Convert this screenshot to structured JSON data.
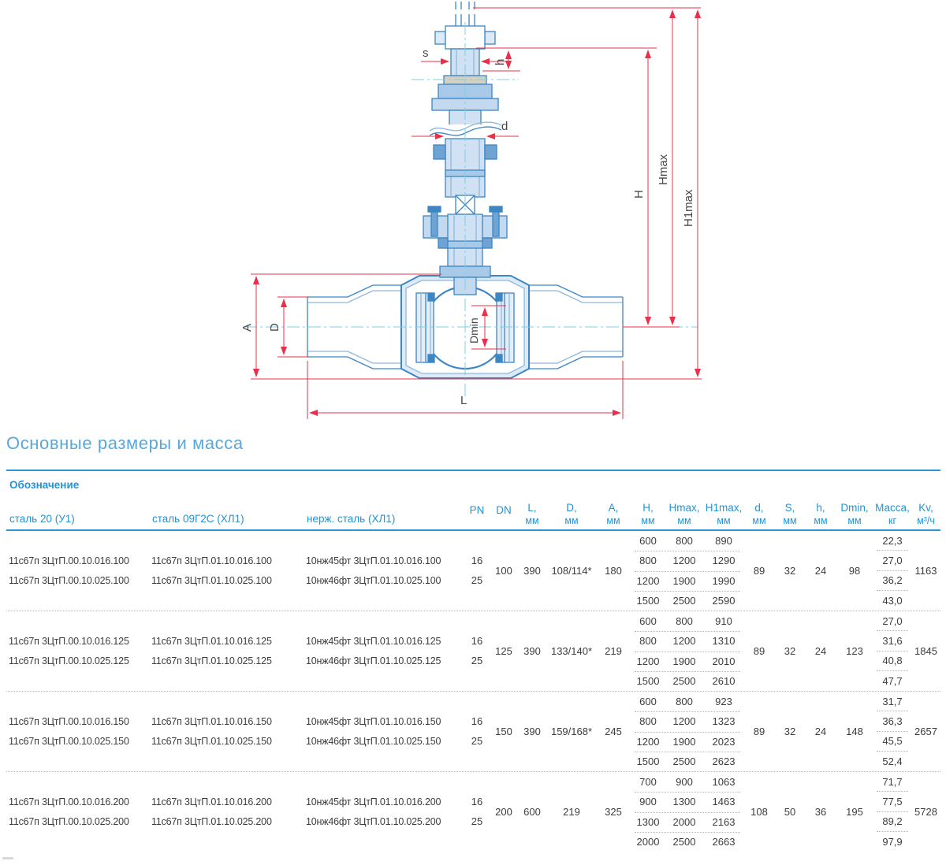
{
  "drawing": {
    "labels": {
      "s": "s",
      "h": "h",
      "d": "d",
      "H": "H",
      "Hmax": "Hmax",
      "H1max": "H1max",
      "A": "A",
      "D": "D",
      "Dmin": "Dmin",
      "L": "L"
    },
    "colors": {
      "outline_blue": "#3c86c4",
      "fill_light_blue": "#cfe1f2",
      "dimension_red": "#e8304a",
      "centerline_cyan": "#7ccfe2"
    }
  },
  "section": {
    "title": "Основные размеры и масса"
  },
  "table": {
    "designation_header": "Обозначение",
    "material_columns": [
      "сталь 20 (У1)",
      "сталь 09Г2С (ХЛ1)",
      "нерж. сталь (ХЛ1)"
    ],
    "columns": [
      {
        "label": "PN",
        "unit": ""
      },
      {
        "label": "DN",
        "unit": ""
      },
      {
        "label": "L,",
        "unit": "мм"
      },
      {
        "label": "D,",
        "unit": "мм"
      },
      {
        "label": "A,",
        "unit": "мм"
      },
      {
        "label": "H,",
        "unit": "мм"
      },
      {
        "label": "Hmax,",
        "unit": "мм"
      },
      {
        "label": "H1max,",
        "unit": "мм"
      },
      {
        "label": "d,",
        "unit": "мм"
      },
      {
        "label": "S,",
        "unit": "мм"
      },
      {
        "label": "h,",
        "unit": "мм"
      },
      {
        "label": "Dmin,",
        "unit": "мм"
      },
      {
        "label": "Масса,",
        "unit": "кг"
      },
      {
        "label": "Kv,",
        "unit": "м³/ч"
      }
    ],
    "blocks": [
      {
        "designations_u1": [
          "11с67п 3ЦтП.00.10.016.100",
          "11с67п 3ЦтП.00.10.025.100"
        ],
        "designations_hl1": [
          "11с67п 3ЦтП.01.10.016.100",
          "11с67п 3ЦтП.01.10.025.100"
        ],
        "designations_stainless": [
          "10нж45фт 3ЦтП.01.10.016.100",
          "10нж46фт 3ЦтП.01.10.025.100"
        ],
        "pn": [
          "16",
          "25"
        ],
        "dn": "100",
        "l": "390",
        "d_pipe": "108/114*",
        "a": "180",
        "h_rows": [
          [
            "600",
            "800",
            "890"
          ],
          [
            "800",
            "1200",
            "1290"
          ],
          [
            "1200",
            "1900",
            "1990"
          ],
          [
            "1500",
            "2500",
            "2590"
          ]
        ],
        "d2": "89",
        "s2": "32",
        "h2": "24",
        "dmin": "98",
        "mass": [
          "22,3",
          "27,0",
          "36,2",
          "43,0"
        ],
        "kv": "1163"
      },
      {
        "designations_u1": [
          "11с67п 3ЦтП.00.10.016.125",
          "11с67п 3ЦтП.00.10.025.125"
        ],
        "designations_hl1": [
          "11с67п 3ЦтП.01.10.016.125",
          "11с67п 3ЦтП.01.10.025.125"
        ],
        "designations_stainless": [
          "10нж45фт 3ЦтП.01.10.016.125",
          "10нж46фт 3ЦтП.01.10.025.125"
        ],
        "pn": [
          "16",
          "25"
        ],
        "dn": "125",
        "l": "390",
        "d_pipe": "133/140*",
        "a": "219",
        "h_rows": [
          [
            "600",
            "800",
            "910"
          ],
          [
            "800",
            "1200",
            "1310"
          ],
          [
            "1200",
            "1900",
            "2010"
          ],
          [
            "1500",
            "2500",
            "2610"
          ]
        ],
        "d2": "89",
        "s2": "32",
        "h2": "24",
        "dmin": "123",
        "mass": [
          "27,0",
          "31,6",
          "40,8",
          "47,7"
        ],
        "kv": "1845"
      },
      {
        "designations_u1": [
          "11с67п 3ЦтП.00.10.016.150",
          "11с67п 3ЦтП.00.10.025.150"
        ],
        "designations_hl1": [
          "11с67п 3ЦтП.01.10.016.150",
          "11с67п 3ЦтП.01.10.025.150"
        ],
        "designations_stainless": [
          "10нж45фт 3ЦтП.01.10.016.150",
          "10нж46фт 3ЦтП.01.10.025.150"
        ],
        "pn": [
          "16",
          "25"
        ],
        "dn": "150",
        "l": "390",
        "d_pipe": "159/168*",
        "a": "245",
        "h_rows": [
          [
            "600",
            "800",
            "923"
          ],
          [
            "800",
            "1200",
            "1323"
          ],
          [
            "1200",
            "1900",
            "2023"
          ],
          [
            "1500",
            "2500",
            "2623"
          ]
        ],
        "d2": "89",
        "s2": "32",
        "h2": "24",
        "dmin": "148",
        "mass": [
          "31,7",
          "36,3",
          "45,5",
          "52,4"
        ],
        "kv": "2657"
      },
      {
        "designations_u1": [
          "11с67п 3ЦтП.00.10.016.200",
          "11с67п 3ЦтП.00.10.025.200"
        ],
        "designations_hl1": [
          "11с67п 3ЦтП.01.10.016.200",
          "11с67п 3ЦтП.01.10.025.200"
        ],
        "designations_stainless": [
          "10нж45фт 3ЦтП.01.10.016.200",
          "10нж46фт 3ЦтП.01.10.025.200"
        ],
        "pn": [
          "16",
          "25"
        ],
        "dn": "200",
        "l": "600",
        "d_pipe": "219",
        "a": "325",
        "h_rows": [
          [
            "700",
            "900",
            "1063"
          ],
          [
            "900",
            "1300",
            "1463"
          ],
          [
            "1300",
            "2000",
            "2163"
          ],
          [
            "2000",
            "2500",
            "2663"
          ]
        ],
        "d2": "108",
        "s2": "50",
        "h2": "36",
        "dmin": "195",
        "mass": [
          "71,7",
          "77,5",
          "89,2",
          "97,9"
        ],
        "kv": "5728"
      }
    ]
  }
}
